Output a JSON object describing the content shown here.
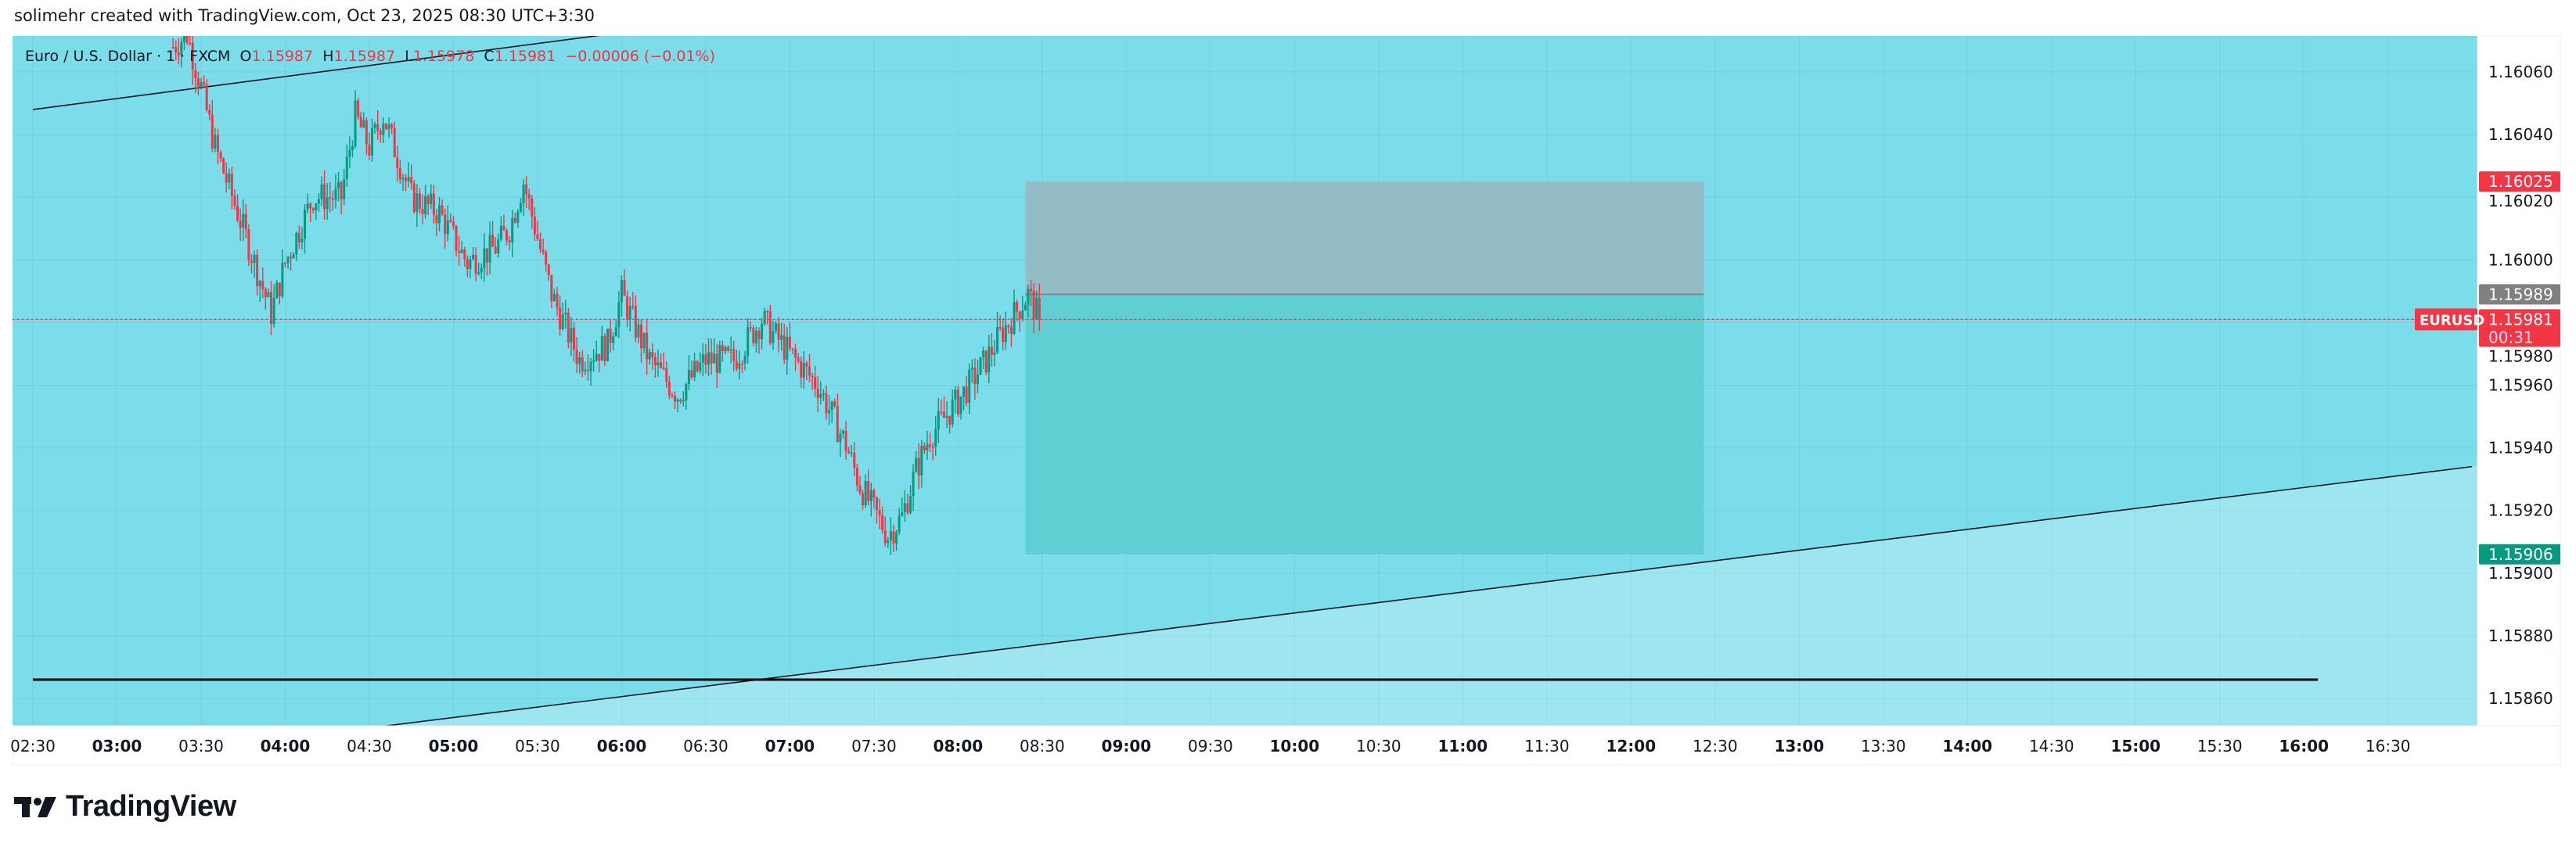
{
  "header": {
    "caption": "solimehr created with TradingView.com, Oct 23, 2025 08:30 UTC+3:30"
  },
  "legend": {
    "symbol": "Euro / U.S. Dollar · 1 · FXCM",
    "open_label": "O",
    "open": "1.15987",
    "high_label": "H",
    "high": "1.15987",
    "low_label": "L",
    "low": "1.15978",
    "close_label": "C",
    "close": "1.15981",
    "change": "−0.00006 (−0.01%)"
  },
  "price_axis": {
    "ticks": [
      "1.16060",
      "1.16040",
      "1.16020",
      "1.16000",
      "1.15980",
      "1.15960",
      "1.15940",
      "1.15920",
      "1.15900",
      "1.15880",
      "1.15860"
    ],
    "range": [
      1.1585,
      1.16072
    ],
    "labels": {
      "stop": {
        "text": "1.16025",
        "color": "#f23645"
      },
      "entry": {
        "text": "1.15989",
        "color": "#808080"
      },
      "current": {
        "text": "1.15981",
        "countdown": "00:31",
        "color": "#f23645"
      },
      "target": {
        "text": "1.15906",
        "color": "#089981"
      },
      "symbol_tag": "EURUSD"
    }
  },
  "time_axis": {
    "ticks": [
      "02:30",
      "03:00",
      "03:30",
      "04:00",
      "04:30",
      "05:00",
      "05:30",
      "06:00",
      "06:30",
      "07:00",
      "07:30",
      "08:00",
      "08:30",
      "09:00",
      "09:30",
      "10:00",
      "10:30",
      "11:00",
      "11:30",
      "12:00",
      "12:30",
      "13:00",
      "13:30",
      "14:00",
      "14:30",
      "15:00",
      "15:30",
      "16:00",
      "16:30"
    ]
  },
  "colors": {
    "background": "#7bdcea",
    "below_trendline": "#9ee6ef",
    "up": "#089981",
    "down": "#f23645",
    "stop_zone": "#94bcc6",
    "target_zone": "#5fcfd4"
  },
  "chart_data": {
    "type": "candlestick",
    "interval": "1 minute",
    "close_path": [
      [
        "03:20",
        1.16068
      ],
      [
        "03:25",
        1.16072
      ],
      [
        "03:30",
        1.16055
      ],
      [
        "03:35",
        1.16036
      ],
      [
        "03:45",
        1.1601
      ],
      [
        "03:55",
        1.15983
      ],
      [
        "04:00",
        1.15999
      ],
      [
        "04:10",
        1.1602
      ],
      [
        "04:20",
        1.1602
      ],
      [
        "04:25",
        1.16046
      ],
      [
        "04:30",
        1.16036
      ],
      [
        "04:35",
        1.16046
      ],
      [
        "04:45",
        1.1602
      ],
      [
        "04:55",
        1.16015
      ],
      [
        "05:05",
        1.15999
      ],
      [
        "05:15",
        1.16004
      ],
      [
        "05:20",
        1.1601
      ],
      [
        "05:25",
        1.16025
      ],
      [
        "05:35",
        1.15989
      ],
      [
        "05:45",
        1.15968
      ],
      [
        "05:55",
        1.15973
      ],
      [
        "06:00",
        1.15989
      ],
      [
        "06:10",
        1.15968
      ],
      [
        "06:20",
        1.15957
      ],
      [
        "06:30",
        1.15968
      ],
      [
        "06:40",
        1.15968
      ],
      [
        "06:50",
        1.15981
      ],
      [
        "07:00",
        1.1597
      ],
      [
        "07:10",
        1.1596
      ],
      [
        "07:20",
        1.15941
      ],
      [
        "07:25",
        1.15928
      ],
      [
        "07:35",
        1.15912
      ],
      [
        "07:40",
        1.15918
      ],
      [
        "07:45",
        1.15933
      ],
      [
        "07:50",
        1.15944
      ],
      [
        "08:00",
        1.15955
      ],
      [
        "08:10",
        1.15968
      ],
      [
        "08:15",
        1.15976
      ],
      [
        "08:25",
        1.15989
      ],
      [
        "08:29",
        1.15981
      ]
    ],
    "trendlines": [
      {
        "from": [
          "02:30",
          1.16048
        ],
        "to": [
          "05:55",
          1.16072
        ]
      },
      {
        "from": [
          "04:25",
          1.1585
        ],
        "to": [
          "17:00",
          1.15934
        ]
      }
    ],
    "horizontal_line": {
      "price": 1.15866,
      "from": "02:30",
      "to": "16:05"
    },
    "short_position": {
      "start": "08:24",
      "end": "12:26",
      "entry": 1.15989,
      "stop": 1.16025,
      "target": 1.15906
    },
    "current_price": 1.15981
  },
  "branding": {
    "logo_text": "TradingView"
  }
}
